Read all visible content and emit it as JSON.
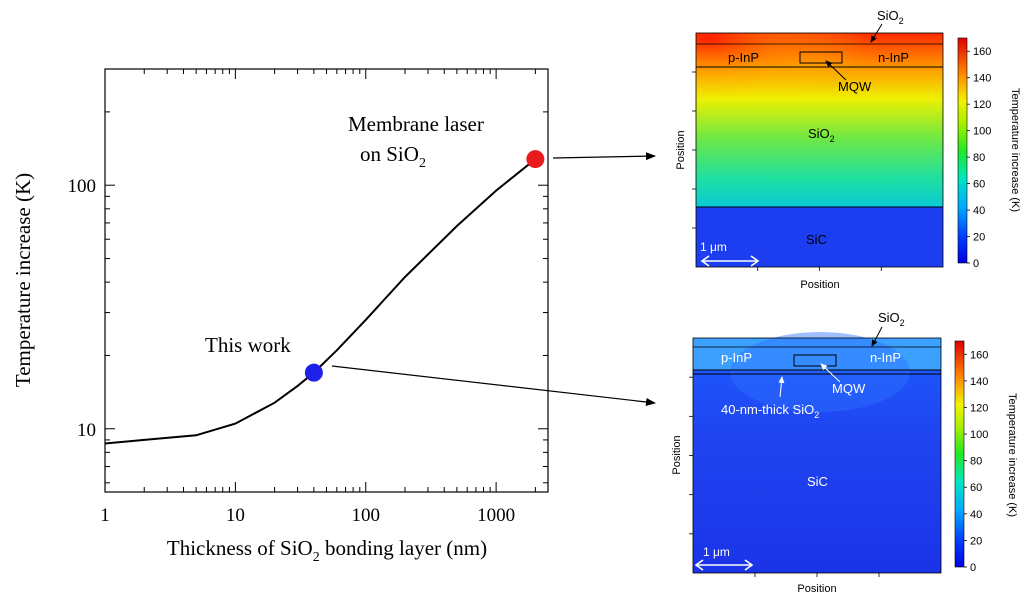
{
  "chart_data": [
    {
      "type": "line",
      "xlabel_pre": "Thickness of SiO",
      "xlabel_sub": "2",
      "xlabel_post": " bonding layer (nm)",
      "ylabel": "Temperature increase (K)",
      "xscale": "log",
      "yscale": "log",
      "xlim": [
        1,
        2500
      ],
      "ylim": [
        5.5,
        300
      ],
      "xticks": [
        {
          "value": 1,
          "label": "1"
        },
        {
          "value": 10,
          "label": "10"
        },
        {
          "value": 100,
          "label": "100"
        },
        {
          "value": 1000,
          "label": "1000"
        }
      ],
      "yticks": [
        {
          "value": 10,
          "label": "10"
        },
        {
          "value": 100,
          "label": "100"
        }
      ],
      "grid": false,
      "series": [
        {
          "x": [
            1,
            2,
            5,
            10,
            20,
            30,
            40,
            60,
            100,
            200,
            500,
            1000,
            2000
          ],
          "y": [
            8.7,
            9.0,
            9.4,
            10.5,
            12.8,
            15.0,
            17.0,
            21.0,
            28.0,
            42.0,
            68.0,
            95.0,
            128.0
          ]
        }
      ],
      "points": [
        {
          "x": 2000,
          "y": 128,
          "color": "#e81c1c"
        },
        {
          "x": 40,
          "y": 17,
          "color": "#1e22e8"
        }
      ],
      "annotations": {
        "membrane_line1": "Membrane laser",
        "membrane_line2_pre": "on SiO",
        "membrane_line2_sub": "2",
        "this_work": "This work"
      }
    },
    {
      "type": "heatmap",
      "title": "",
      "xlabel": "Position",
      "ylabel": "Position",
      "colorbar_label": "Temperature increase (K)",
      "colorbar_ticks": [
        0,
        20,
        40,
        60,
        80,
        100,
        120,
        140,
        160
      ],
      "colorbar_range": [
        0,
        170
      ],
      "scale_bar": "1 μm",
      "regions": {
        "p_inp": "p-InP",
        "n_inp": "n-InP",
        "mqw": "MQW",
        "sio2_top_pre": "SiO",
        "sio2_top_sub": "2",
        "sio2_mid_pre": "SiO",
        "sio2_mid_sub": "2",
        "sic": "SiC"
      },
      "temperature_range_shown": [
        40,
        165
      ]
    },
    {
      "type": "heatmap",
      "title": "",
      "xlabel": "Position",
      "ylabel": "Position",
      "colorbar_label": "Temperature increase (K)",
      "colorbar_ticks": [
        0,
        20,
        40,
        60,
        80,
        100,
        120,
        140,
        160
      ],
      "colorbar_range": [
        0,
        170
      ],
      "scale_bar": "1 μm",
      "regions": {
        "p_inp": "p-InP",
        "n_inp": "n-InP",
        "mqw": "MQW",
        "sio2_top_pre": "SiO",
        "sio2_top_sub": "2",
        "thin_sio2_pre": "40-nm-thick SiO",
        "thin_sio2_sub": "2",
        "sic": "SiC"
      },
      "temperature_range_shown": [
        10,
        25
      ]
    }
  ]
}
